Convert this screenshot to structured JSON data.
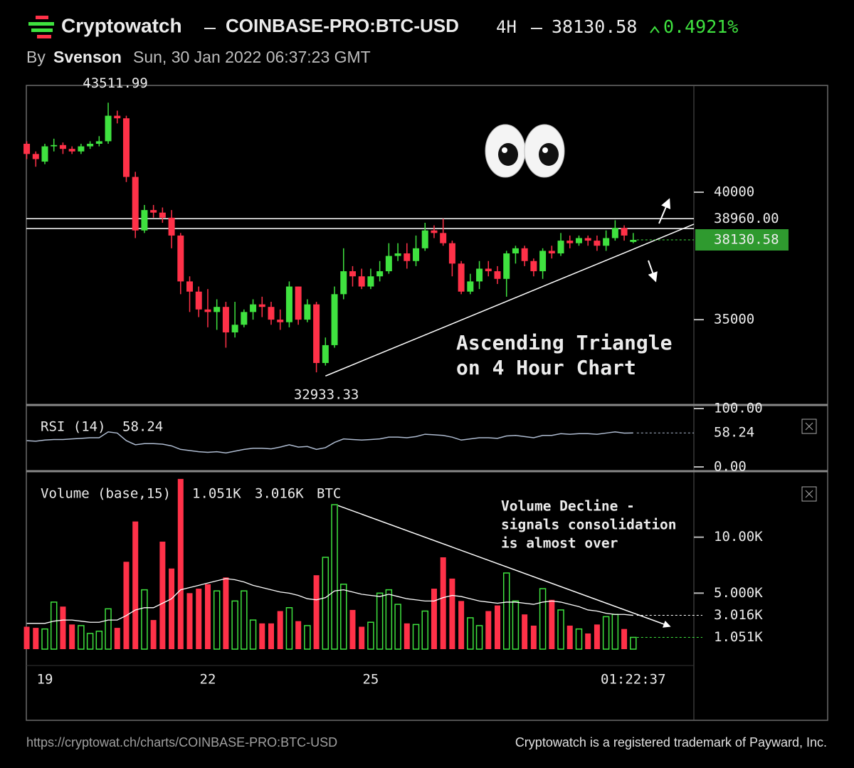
{
  "header": {
    "site": "Cryptowatch",
    "symbol": "COINBASE-PRO:BTC-USD",
    "interval": "4H",
    "change": "0.4921%",
    "by": "By",
    "author": "Svenson",
    "timestamp": "Sun, 30 Jan 2022 06:37:23 GMT"
  },
  "chart_data": [
    {
      "type": "candlestick",
      "categories": [
        null,
        null,
        "19",
        null,
        null,
        null,
        null,
        null,
        null,
        null,
        null,
        null,
        null,
        null,
        null,
        null,
        null,
        null,
        null,
        null,
        "22",
        null,
        null,
        null,
        null,
        null,
        null,
        null,
        null,
        null,
        null,
        null,
        null,
        null,
        null,
        null,
        null,
        null,
        "25",
        null,
        null,
        null,
        null,
        null,
        null,
        null,
        null,
        null,
        null,
        null,
        null,
        null,
        null,
        null,
        null,
        null,
        null,
        null,
        null,
        null,
        null,
        null,
        null,
        null,
        null,
        null,
        null,
        null
      ],
      "series": {
        "open": [
          41900,
          41500,
          41200,
          41800,
          41850,
          41700,
          41600,
          41800,
          41900,
          42000,
          43000,
          42900,
          40600,
          38500,
          39300,
          39200,
          39000,
          38300,
          36500,
          36100,
          35400,
          35300,
          35500,
          34500,
          34800,
          35300,
          35600,
          35500,
          35000,
          34900,
          36300,
          35000,
          35600,
          33300,
          34000,
          36000,
          36900,
          36700,
          36300,
          36700,
          36900,
          37500,
          37600,
          37300,
          37800,
          38500,
          38400,
          38000,
          37200,
          36100,
          36500,
          37000,
          36900,
          36600,
          37600,
          37800,
          37300,
          36900,
          37700,
          37600,
          38100,
          38000,
          38200,
          38100,
          37900,
          38200,
          38600,
          38050
        ],
        "high": [
          42000,
          41600,
          41900,
          42100,
          41950,
          41800,
          41900,
          42000,
          42200,
          43511.99,
          43200,
          43000,
          40800,
          39500,
          39500,
          39400,
          39300,
          38400,
          36700,
          36300,
          36200,
          35800,
          35700,
          35700,
          35400,
          35800,
          35900,
          35700,
          35400,
          36500,
          36300,
          35800,
          35700,
          34300,
          36300,
          37800,
          37100,
          37000,
          37000,
          37300,
          38000,
          38000,
          38000,
          38300,
          38800,
          38700,
          38960,
          38100,
          37300,
          36800,
          37300,
          37300,
          37100,
          37700,
          37900,
          37900,
          37400,
          37800,
          37900,
          38400,
          38300,
          38300,
          38300,
          38300,
          38500,
          38900,
          38700,
          38400
        ],
        "low": [
          41300,
          41000,
          41100,
          41600,
          41500,
          41500,
          41500,
          41700,
          41800,
          41900,
          42700,
          40400,
          38200,
          38400,
          39000,
          38800,
          37800,
          36000,
          35300,
          35100,
          34700,
          34600,
          33900,
          34300,
          34700,
          35000,
          35100,
          34800,
          34600,
          34700,
          34800,
          34900,
          32933.33,
          33200,
          33900,
          35800,
          36300,
          36200,
          36200,
          36500,
          36800,
          37300,
          37000,
          37100,
          37700,
          38200,
          37900,
          36700,
          36000,
          36000,
          36200,
          36700,
          36400,
          35900,
          37200,
          37100,
          36700,
          36600,
          37400,
          37500,
          37800,
          37900,
          37900,
          37700,
          37700,
          38100,
          38100,
          38000
        ],
        "close": [
          41500,
          41300,
          41800,
          41850,
          41700,
          41600,
          41800,
          41900,
          42000,
          43000,
          42900,
          40600,
          38500,
          39300,
          39200,
          39000,
          38300,
          36500,
          36100,
          35400,
          35300,
          35500,
          34500,
          34800,
          35300,
          35600,
          35500,
          35000,
          34900,
          36300,
          35000,
          35600,
          33300,
          34000,
          36000,
          36900,
          36700,
          36300,
          36700,
          36900,
          37500,
          37600,
          37300,
          37800,
          38500,
          38400,
          38000,
          37200,
          36100,
          36500,
          37000,
          36900,
          36600,
          37600,
          37800,
          37300,
          36900,
          37700,
          37600,
          38100,
          38000,
          38200,
          38100,
          37900,
          38200,
          38600,
          38300,
          38130.58
        ]
      },
      "up_color": "#3fe23f",
      "down_color": "#ff3148",
      "ylim": [
        31680,
        44190
      ],
      "yticks": [
        35000,
        40000
      ],
      "levels": [
        {
          "value": 38960,
          "label": "38960.00"
        },
        38575
      ],
      "trendline": {
        "x": [
          33,
          73.7
        ],
        "y": [
          32790,
          38745
        ]
      },
      "annotation": [
        "Ascending Triangle",
        "on 4 Hour Chart"
      ],
      "crosshair_label": "01:22:37"
    },
    {
      "type": "line",
      "title": "RSI (14)",
      "color": "#aebbd0",
      "values": [
        45,
        44,
        46,
        47,
        47,
        48,
        49,
        50,
        50,
        60,
        58,
        45,
        38,
        40,
        40,
        39,
        36,
        30,
        28,
        26,
        25,
        26,
        24,
        27,
        30,
        32,
        32,
        31,
        34,
        38,
        34,
        35,
        30,
        33,
        42,
        48,
        47,
        46,
        47,
        48,
        51,
        51,
        50,
        52,
        56,
        55,
        54,
        51,
        46,
        48,
        50,
        50,
        49,
        53,
        54,
        52,
        50,
        54,
        54,
        57,
        56,
        57,
        57,
        56,
        58,
        60,
        58,
        58.24
      ],
      "ylim": [
        0,
        100
      ],
      "yticks": [
        {
          "value": 100,
          "label": "100.00"
        },
        {
          "value": 0,
          "label": "0.00"
        }
      ]
    },
    {
      "type": "bar",
      "title": "Volume (base,15)",
      "unit": "BTC",
      "values": [
        2000,
        1900,
        1800,
        4200,
        3800,
        2200,
        2100,
        1400,
        1600,
        3600,
        1900,
        7800,
        11400,
        5300,
        2600,
        9600,
        7200,
        15200,
        5000,
        5400,
        5800,
        5200,
        6400,
        4300,
        5200,
        2600,
        2300,
        2300,
        3400,
        3700,
        2500,
        2100,
        6600,
        8200,
        12900,
        5800,
        3500,
        2000,
        2400,
        5000,
        5300,
        4000,
        2300,
        2200,
        3400,
        5400,
        8200,
        6300,
        4300,
        2800,
        2100,
        3400,
        3900,
        6800,
        4300,
        3100,
        2100,
        5400,
        4400,
        3500,
        2100,
        1800,
        1400,
        2200,
        2900,
        3100,
        1800,
        1051
      ],
      "last_label": "1.051K",
      "ma": {
        "color": "#ffffff",
        "values": [
          2300,
          2300,
          2300,
          2500,
          2600,
          2600,
          2500,
          2400,
          2400,
          2600,
          2600,
          3000,
          3500,
          3700,
          3700,
          4100,
          4500,
          5300,
          5500,
          5700,
          5900,
          6100,
          6300,
          6200,
          6000,
          5700,
          5500,
          5300,
          5100,
          5000,
          4800,
          4500,
          4400,
          4600,
          5200,
          5300,
          5100,
          4900,
          4800,
          4700,
          4900,
          4700,
          4500,
          4400,
          4300,
          4300,
          4600,
          4800,
          4700,
          4500,
          4300,
          4200,
          4100,
          4200,
          4200,
          4100,
          4000,
          4200,
          4300,
          4200,
          4000,
          3800,
          3500,
          3400,
          3200,
          3100,
          3100,
          3016
        ],
        "last_label": "3.016K"
      },
      "ylim": [
        0,
        15700
      ],
      "yticks": [
        {
          "value": 10000,
          "label": "10.00K"
        },
        {
          "value": 5000,
          "label": "5.000K"
        }
      ],
      "annotation": [
        "Volume Decline -",
        "signals consolidation",
        "is almost over"
      ],
      "trendline": {
        "x": [
          34.4,
          71
        ],
        "y": [
          12820,
          2050
        ]
      }
    }
  ],
  "footer": {
    "url": "https://cryptowat.ch/charts/COINBASE-PRO:BTC-USD",
    "trademark": "Cryptowatch is a registered trademark of Payward, Inc."
  }
}
